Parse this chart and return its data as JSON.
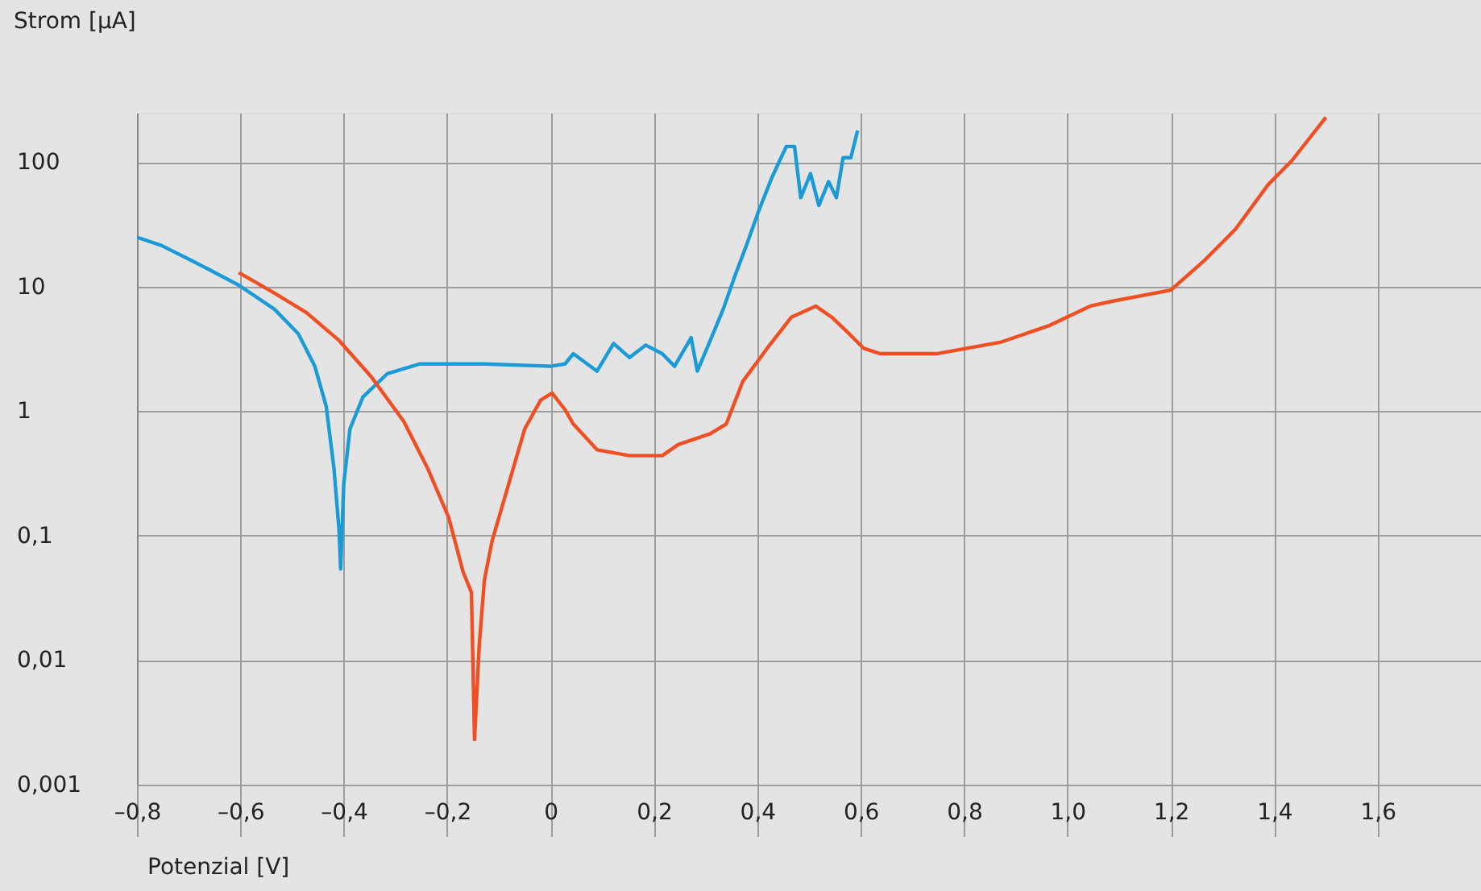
{
  "chart_data": {
    "type": "line",
    "ylabel": "Strom [µA]",
    "xlabel": "Potenzial [V]",
    "log": "y",
    "xlim": [
      -0.8,
      1.8
    ],
    "ylim": [
      0.001,
      250
    ],
    "xticks": [
      {
        "value": -0.8,
        "label": "–0,8"
      },
      {
        "value": -0.6,
        "label": "–0,6"
      },
      {
        "value": -0.4,
        "label": "–0,4"
      },
      {
        "value": -0.2,
        "label": "–0,2"
      },
      0,
      {
        "value": 0.2,
        "label": "0,2"
      },
      {
        "value": 0.4,
        "label": "0,4"
      },
      {
        "value": 0.6,
        "label": "0,6"
      },
      {
        "value": 0.8,
        "label": "0,8"
      },
      {
        "value": 1.0,
        "label": "1,0"
      },
      {
        "value": 1.2,
        "label": "1,2"
      },
      {
        "value": 1.4,
        "label": "1,4"
      },
      {
        "value": 1.6,
        "label": "1,6"
      }
    ],
    "yticks": [
      {
        "value": 0.001,
        "label": "0,001"
      },
      {
        "value": 0.01,
        "label": "0,01"
      },
      {
        "value": 0.1,
        "label": "0,1"
      },
      1,
      10,
      100
    ],
    "grid": true,
    "legend": false,
    "marker": "none",
    "line_style": "solid",
    "series": [
      {
        "color": "#1a9bd7",
        "x": [
          -0.8,
          -0.753,
          -0.691,
          -0.603,
          -0.534,
          -0.488,
          -0.456,
          -0.434,
          -0.419,
          -0.409,
          -0.406,
          -0.4,
          -0.388,
          -0.363,
          -0.316,
          -0.253,
          -0.128,
          0.0,
          0.028,
          0.044,
          0.09,
          0.122,
          0.153,
          0.184,
          0.216,
          0.24,
          0.272,
          0.284,
          0.309,
          0.334,
          0.356,
          0.378,
          0.403,
          0.428,
          0.456,
          0.472,
          0.484,
          0.503,
          0.519,
          0.538,
          0.553,
          0.566,
          0.581,
          0.594
        ],
        "values": [
          25,
          21.5,
          16,
          10.3,
          6.6,
          4.2,
          2.3,
          1.1,
          0.35,
          0.11,
          0.054,
          0.26,
          0.72,
          1.3,
          2.0,
          2.4,
          2.4,
          2.3,
          2.4,
          2.9,
          2.1,
          3.5,
          2.7,
          3.4,
          2.9,
          2.3,
          3.9,
          2.1,
          3.7,
          6.6,
          12,
          21,
          41,
          75,
          134,
          134,
          52,
          81,
          45,
          70,
          52,
          109,
          109,
          180
        ]
      },
      {
        "color": "#f04e23",
        "x": [
          -0.603,
          -0.534,
          -0.472,
          -0.409,
          -0.347,
          -0.284,
          -0.238,
          -0.197,
          -0.169,
          -0.153,
          -0.147,
          -0.138,
          -0.128,
          -0.113,
          -0.081,
          -0.05,
          -0.019,
          0.003,
          0.028,
          0.044,
          0.09,
          0.153,
          0.216,
          0.247,
          0.309,
          0.34,
          0.372,
          0.419,
          0.466,
          0.513,
          0.544,
          0.575,
          0.606,
          0.638,
          0.747,
          0.872,
          0.966,
          1.044,
          1.09,
          1.2,
          1.263,
          1.325,
          1.388,
          1.434,
          1.5
        ],
        "values": [
          13,
          8.9,
          6.2,
          3.7,
          1.9,
          0.83,
          0.35,
          0.14,
          0.051,
          0.035,
          0.0023,
          0.013,
          0.044,
          0.091,
          0.26,
          0.72,
          1.23,
          1.4,
          1.03,
          0.79,
          0.49,
          0.44,
          0.44,
          0.54,
          0.66,
          0.79,
          1.74,
          3.2,
          5.7,
          7.0,
          5.7,
          4.3,
          3.2,
          2.9,
          2.9,
          3.6,
          4.9,
          7.0,
          7.7,
          9.4,
          16,
          29,
          66,
          103,
          230
        ]
      }
    ]
  }
}
